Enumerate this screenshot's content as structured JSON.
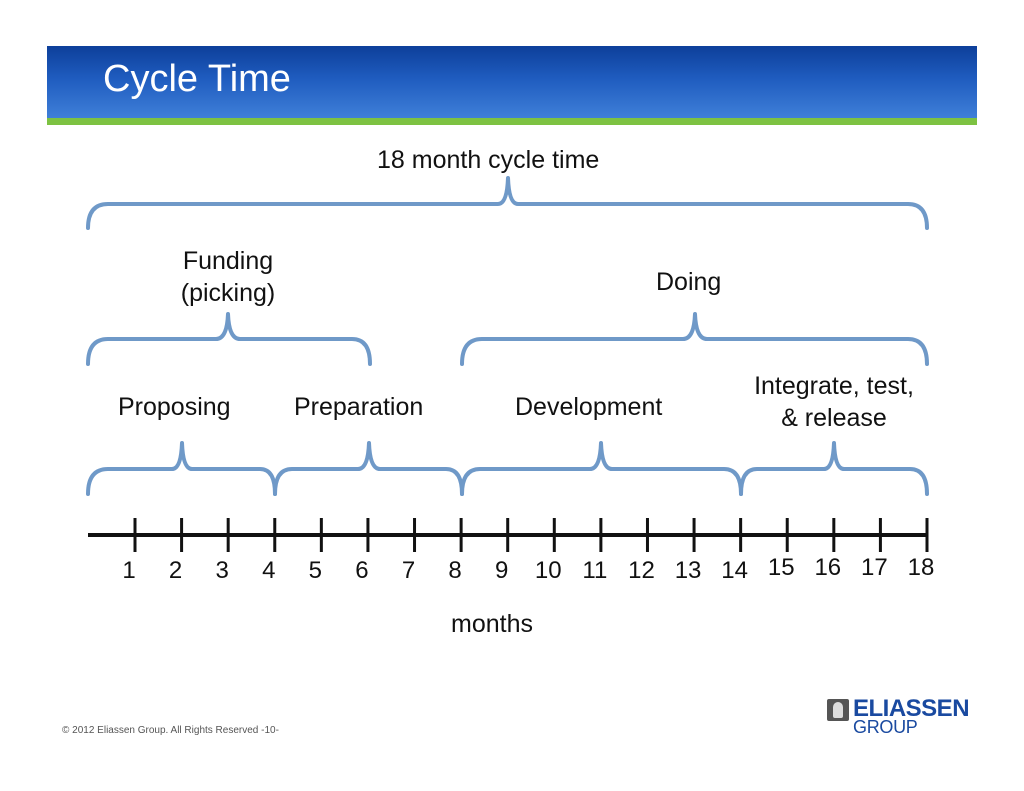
{
  "header": {
    "title": "Cycle Time"
  },
  "labels": {
    "total": "18 month cycle time",
    "funding": "Funding\n(picking)",
    "doing": "Doing",
    "proposing": "Proposing",
    "preparation": "Preparation",
    "development": "Development",
    "integrate": "Integrate, test,\n& release"
  },
  "axis": {
    "label": "months",
    "ticks": [
      "1",
      "2",
      "3",
      "4",
      "5",
      "6",
      "7",
      "8",
      "9",
      "10",
      "11",
      "12",
      "13",
      "14",
      "15",
      "16",
      "17",
      "18"
    ]
  },
  "footer": {
    "copyright": "© 2012 Eliassen Group. All Rights Reserved -10-"
  },
  "logo": {
    "top": "ELIASSEN",
    "bottom": "GROUP"
  },
  "colors": {
    "bracket": "#6f99c8",
    "axis": "#111111",
    "header": "#1f5cbf",
    "stripe": "#7dc242"
  }
}
